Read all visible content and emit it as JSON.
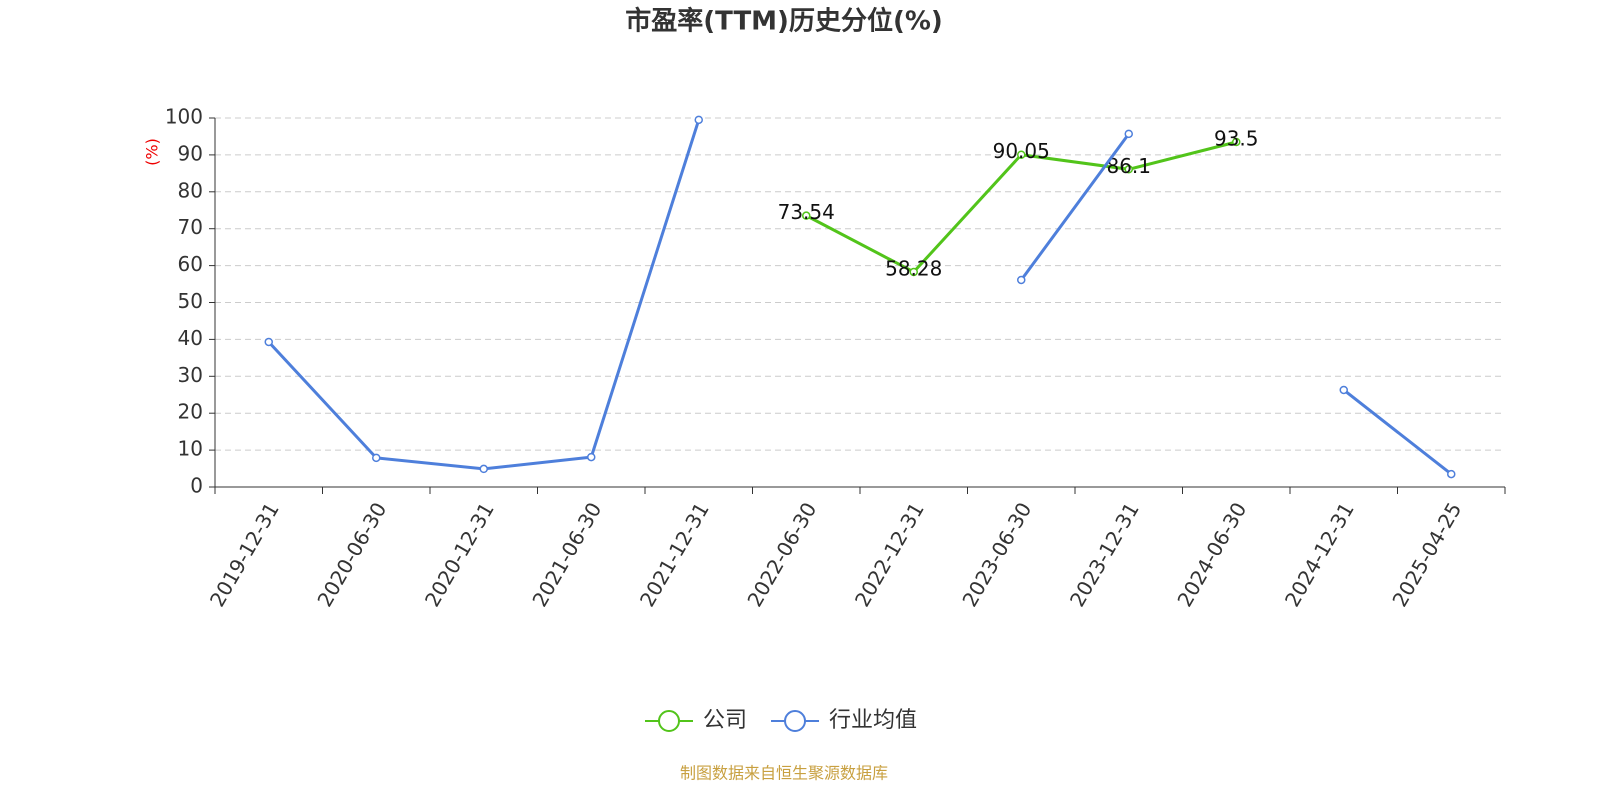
{
  "chart_data": {
    "type": "line",
    "title": "市盈率(TTM)历史分位(%)",
    "y_label": "(%)",
    "source": "制图数据来自恒生聚源数据库",
    "categories": [
      "2019-12-31",
      "2020-06-30",
      "2020-12-31",
      "2021-06-30",
      "2021-12-31",
      "2022-06-30",
      "2022-12-31",
      "2023-06-30",
      "2023-12-31",
      "2024-06-30",
      "2024-12-31",
      "2025-04-25"
    ],
    "series": [
      {
        "name": "公司",
        "color": "#52c41a",
        "show_labels": true,
        "values": [
          null,
          null,
          null,
          null,
          null,
          73.54,
          58.28,
          90.05,
          86.1,
          93.5,
          null,
          null
        ]
      },
      {
        "name": "行业均值",
        "color": "#4e7fdb",
        "show_labels": false,
        "values": [
          39.3,
          7.9,
          4.9,
          8.1,
          99.5,
          null,
          null,
          56.1,
          95.7,
          null,
          26.3,
          3.5
        ]
      }
    ],
    "ylim": [
      0,
      100
    ],
    "yticks": [
      0,
      10,
      20,
      30,
      40,
      50,
      60,
      70,
      80,
      90,
      100
    ],
    "grid": true,
    "legend": "bottom"
  }
}
